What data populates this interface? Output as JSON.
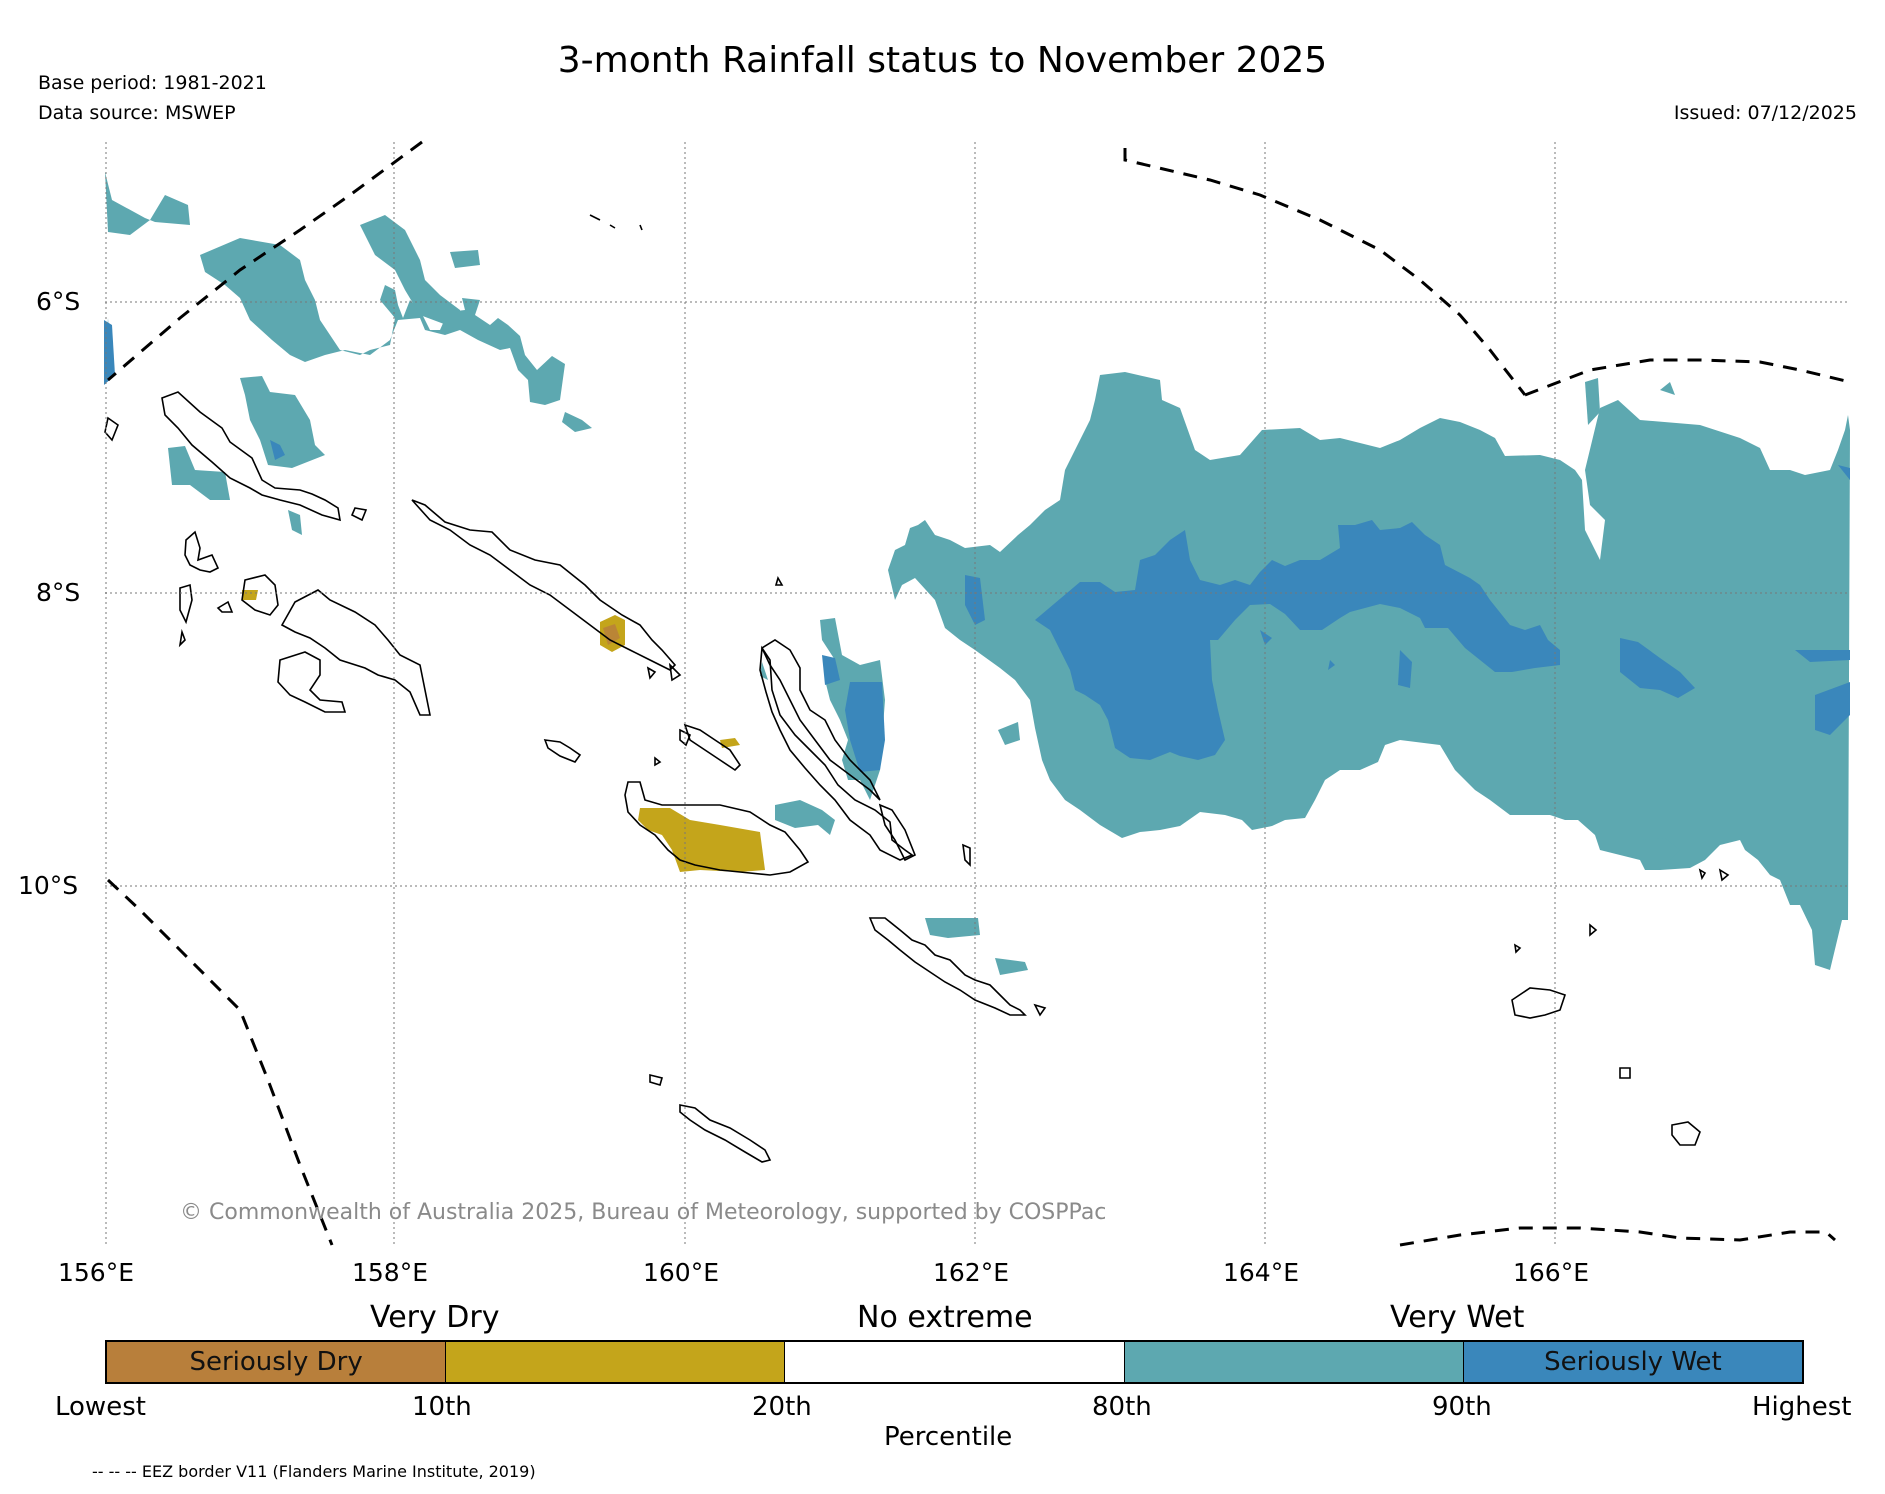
{
  "title": "3-month Rainfall status to November 2025",
  "meta": {
    "base_period": "Base period: 1981-2021",
    "data_source": "Data source: MSWEP",
    "issued": "Issued: 07/12/2025"
  },
  "map": {
    "lat_labels": [
      "6°S",
      "8°S",
      "10°S"
    ],
    "lon_labels": [
      "156°E",
      "158°E",
      "160°E",
      "162°E",
      "164°E",
      "166°E"
    ],
    "credit": "© Commonwealth of Australia 2025, Bureau of Meteorology, supported by COSPPac"
  },
  "legend": {
    "categories": {
      "dry": "Very Dry",
      "none": "No extreme",
      "wet": "Very Wet"
    },
    "segments": [
      {
        "label": "Seriously Dry",
        "color": "#b87f3b"
      },
      {
        "label": "",
        "color": "#c4a51b"
      },
      {
        "label": "",
        "color": "#ffffff"
      },
      {
        "label": "",
        "color": "#5da8b0"
      },
      {
        "label": "Seriously Wet",
        "color": "#3a87bb"
      }
    ],
    "percentiles": [
      "Lowest",
      "10th",
      "20th",
      "80th",
      "90th",
      "Highest"
    ],
    "axis_label": "Percentile"
  },
  "eez_note": "-- -- -- EEZ border V11 (Flanders Marine Institute, 2019)",
  "colors": {
    "very_wet": "#5da8b0",
    "seriously_wet": "#3a87bb",
    "very_dry": "#c4a51b",
    "seriously_dry": "#b87f3b"
  }
}
